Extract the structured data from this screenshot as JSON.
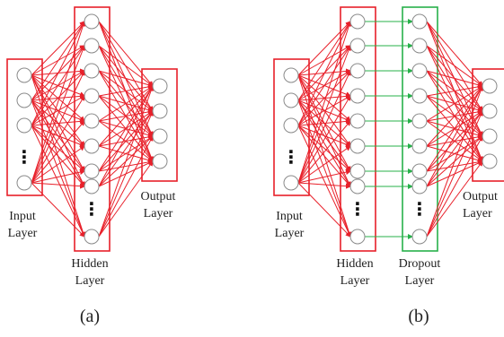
{
  "colors": {
    "red": "#e8202a",
    "green": "#27b04a",
    "node_stroke": "#8a8a8a",
    "text": "#222222"
  },
  "panel_a": {
    "caption": "(a)",
    "input_label": "Input\nLayer",
    "hidden_label": "Hidden\nLayer",
    "output_label": "Output\nLayer",
    "input_nodes": 5,
    "hidden_nodes": 10,
    "output_nodes": 4
  },
  "panel_b": {
    "caption": "(b)",
    "input_label": "Input\nLayer",
    "hidden_label": "Hidden\nLayer",
    "dropout_label": "Dropout\nLayer",
    "output_label": "Output\nLayer",
    "input_nodes": 5,
    "hidden_nodes": 10,
    "dropout_nodes": 10,
    "output_nodes": 4
  },
  "ellipsis_glyph": "⋮"
}
